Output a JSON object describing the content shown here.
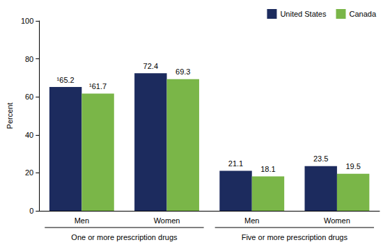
{
  "chart_data": {
    "type": "bar",
    "y_label": "Percent",
    "categories": [
      "Men",
      "Women",
      "Men",
      "Women"
    ],
    "groups": [
      "One or more prescription drugs",
      "One or more prescription drugs",
      "Five or more prescription drugs",
      "Five or more prescription drugs"
    ],
    "series": [
      {
        "name": "United States",
        "color": "#1c2b5e",
        "values": [
          65.2,
          72.4,
          21.1,
          23.5
        ],
        "value_labels": [
          "¹65.2",
          "72.4",
          "21.1",
          "23.5"
        ]
      },
      {
        "name": "Canada",
        "color": "#7ab648",
        "values": [
          61.7,
          69.3,
          18.1,
          19.5
        ],
        "value_labels": [
          "¹61.7",
          "69.3",
          "18.1",
          "19.5"
        ]
      }
    ],
    "ylim": [
      0,
      100
    ],
    "yticks": [
      0,
      20,
      40,
      60,
      80,
      100
    ],
    "grid": false,
    "legend": "top-right",
    "data_labels": true
  }
}
